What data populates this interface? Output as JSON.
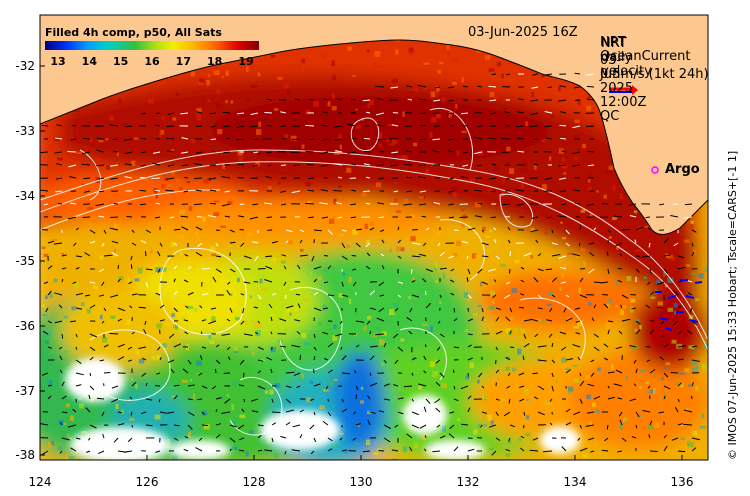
{
  "legend": {
    "title": "Filled 4h comp, p50, All Sats",
    "ticks": [
      "13",
      "14",
      "15",
      "16",
      "17",
      "18",
      "19"
    ],
    "colors": [
      "#000080",
      "#0010c0",
      "#0050ff",
      "#00a0ff",
      "#00d0c0",
      "#20c060",
      "#60d020",
      "#b0e010",
      "#f0f000",
      "#ffd000",
      "#ffa000",
      "#ff7000",
      "#ff3000",
      "#e00000",
      "#b00000",
      "#800000"
    ]
  },
  "date": "03-Jun-2025 16Z",
  "overlay_text": {
    "line1": "NRT OceanCurrent",
    "line2": "NRT daily velocity",
    "line3": "03-Jun-2025 12:00Z QC",
    "scale": "0.5m/s (1kt 24h)"
  },
  "argo_label": "Argo",
  "credit": "© IMOS 07-Jun-2025 15:33 Hobart; Tscale=CARS+[-1 1]",
  "axes": {
    "x_ticks": [
      "124",
      "126",
      "128",
      "130",
      "132",
      "134",
      "136"
    ],
    "y_ticks": [
      "-32",
      "-33",
      "-34",
      "-35",
      "-36",
      "-37",
      "-38"
    ]
  },
  "colors": {
    "land": "#fdc890",
    "vector_scale_red": "#ff0000",
    "vector_scale_blue": "#0000ff",
    "argo": "#ff00ff"
  }
}
